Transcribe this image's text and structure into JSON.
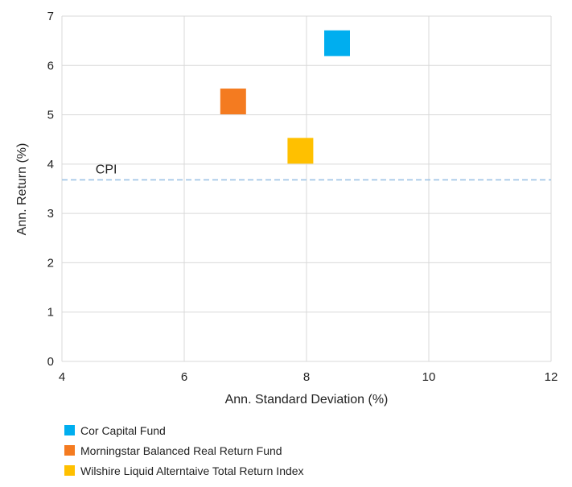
{
  "chart_data": {
    "type": "scatter",
    "title": "",
    "xlabel": "Ann. Standard Deviation (%)",
    "ylabel": "Ann. Return (%)",
    "xlim": [
      4,
      12
    ],
    "ylim": [
      0,
      7
    ],
    "xticks": [
      "4",
      "6",
      "8",
      "10",
      "12"
    ],
    "yticks": [
      "0",
      "1",
      "2",
      "3",
      "4",
      "5",
      "6",
      "7"
    ],
    "grid": true,
    "legend_position": "bottom-left",
    "series": [
      {
        "name": "Cor Capital Fund",
        "color": "#00AEEF",
        "x": 8.5,
        "y": 6.45
      },
      {
        "name": "Morningstar Balanced Real Return Fund",
        "color": "#F47B20",
        "x": 6.8,
        "y": 5.27
      },
      {
        "name": "Wilshire Liquid Alterntaive Total Return Index",
        "color": "#FFC000",
        "x": 7.9,
        "y": 4.27
      }
    ],
    "reference_lines": [
      {
        "label": "CPI",
        "y": 3.68,
        "color": "#9DC3E6",
        "style": "dashed"
      }
    ]
  }
}
